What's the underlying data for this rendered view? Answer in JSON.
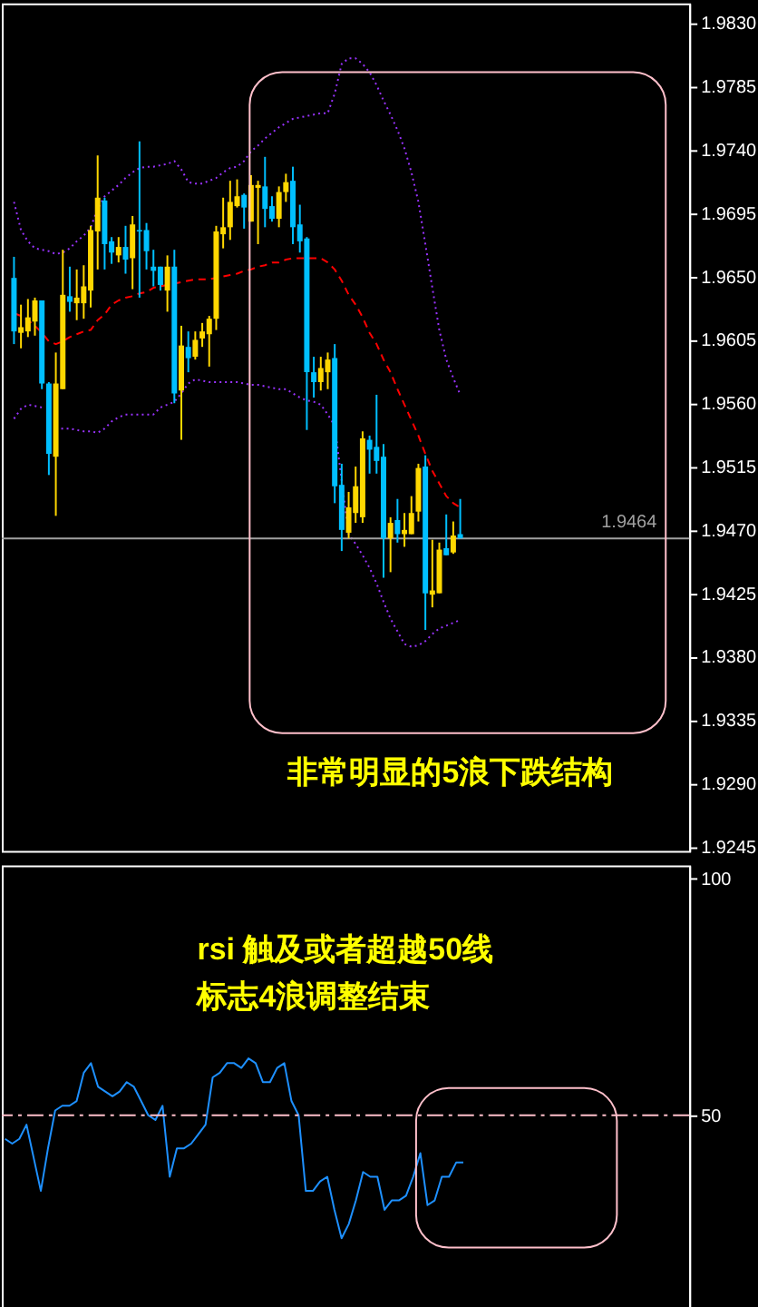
{
  "chart_data": [
    {
      "type": "candlestick",
      "categories": [
        null,
        null,
        null,
        null,
        null,
        null,
        null,
        null,
        null,
        null,
        null,
        null,
        null,
        null,
        null,
        null,
        null,
        null,
        null,
        null,
        null,
        null,
        null,
        null,
        null,
        null,
        null,
        null,
        null,
        null,
        null,
        null,
        null,
        null,
        null,
        null,
        null,
        null,
        null,
        null,
        null,
        null,
        null,
        null,
        null,
        null,
        null,
        null,
        null,
        null,
        null,
        null,
        null,
        null,
        null,
        null,
        null,
        null,
        null,
        null,
        null,
        null,
        null,
        null,
        null
      ],
      "ohlc": [
        [
          1.9649,
          1.9664,
          1.9602,
          1.9611
        ],
        [
          1.961,
          1.963,
          1.9599,
          1.9614
        ],
        [
          1.9611,
          1.9634,
          1.9607,
          1.9621
        ],
        [
          1.9618,
          1.9635,
          1.9608,
          1.9633
        ],
        [
          1.9633,
          1.9633,
          1.957,
          1.9574
        ],
        [
          1.9574,
          1.9575,
          1.9509,
          1.9524
        ],
        [
          1.9522,
          1.9596,
          1.948,
          1.9574
        ],
        [
          1.957,
          1.9669,
          1.957,
          1.9637
        ],
        [
          1.9636,
          1.9657,
          1.9625,
          1.9632
        ],
        [
          1.9631,
          1.9655,
          1.9619,
          1.9635
        ],
        [
          1.9631,
          1.9658,
          1.962,
          1.9643
        ],
        [
          1.964,
          1.9686,
          1.9628,
          1.9683
        ],
        [
          1.9682,
          1.9736,
          1.9655,
          1.9706
        ],
        [
          1.9704,
          1.9706,
          1.9655,
          1.9673
        ],
        [
          1.9675,
          1.9678,
          1.9659,
          1.9667
        ],
        [
          1.9665,
          1.9678,
          1.966,
          1.9671
        ],
        [
          1.9671,
          1.9686,
          1.9652,
          1.9662
        ],
        [
          1.9663,
          1.9693,
          1.9641,
          1.9687
        ],
        [
          1.9683,
          1.9746,
          1.9635,
          1.9682
        ],
        [
          1.9683,
          1.9688,
          1.9655,
          1.9668
        ],
        [
          1.9657,
          1.9669,
          1.9643,
          1.9654
        ],
        [
          1.9657,
          1.9657,
          1.964,
          1.9644
        ],
        [
          1.964,
          1.9665,
          1.9625,
          1.9657
        ],
        [
          1.9657,
          1.9669,
          1.956,
          1.9567
        ],
        [
          1.9569,
          1.9615,
          1.9534,
          1.9601
        ],
        [
          1.96,
          1.9611,
          1.9582,
          1.9592
        ],
        [
          1.9593,
          1.9611,
          1.9591,
          1.9605
        ],
        [
          1.9606,
          1.9617,
          1.96,
          1.9611
        ],
        [
          1.9609,
          1.9622,
          1.9586,
          1.962
        ],
        [
          1.962,
          1.9686,
          1.9612,
          1.9682
        ],
        [
          1.968,
          1.9706,
          1.967,
          1.9685
        ],
        [
          1.9685,
          1.9718,
          1.9676,
          1.9703
        ],
        [
          1.97,
          1.9719,
          1.9699,
          1.9707
        ],
        [
          1.9708,
          1.9709,
          1.9684,
          1.9699
        ],
        [
          1.9689,
          1.9722,
          1.9689,
          1.9715
        ],
        [
          1.9713,
          1.9718,
          1.9673,
          1.9715
        ],
        [
          1.9714,
          1.9735,
          1.9685,
          1.9698
        ],
        [
          1.97,
          1.9707,
          1.9689,
          1.9691
        ],
        [
          1.9691,
          1.9714,
          1.9685,
          1.971
        ],
        [
          1.971,
          1.9723,
          1.9703,
          1.9717
        ],
        [
          1.9718,
          1.9728,
          1.9673,
          1.9685
        ],
        [
          1.9687,
          1.9701,
          1.9667,
          1.9675
        ],
        [
          1.9677,
          1.9678,
          1.9541,
          1.9582
        ],
        [
          1.9582,
          1.9593,
          1.9564,
          1.9575
        ],
        [
          1.9575,
          1.9593,
          1.9569,
          1.9585
        ],
        [
          1.9582,
          1.9596,
          1.957,
          1.9591
        ],
        [
          1.9592,
          1.9602,
          1.9489,
          1.9501
        ],
        [
          1.9502,
          1.9517,
          1.9455,
          1.947
        ],
        [
          1.9468,
          1.9497,
          1.9464,
          1.9486
        ],
        [
          1.9482,
          1.9515,
          1.9475,
          1.9501
        ],
        [
          1.9479,
          1.954,
          1.9475,
          1.9535
        ],
        [
          1.9534,
          1.9537,
          1.951,
          1.9527
        ],
        [
          1.9529,
          1.9566,
          1.951,
          1.9519
        ],
        [
          1.9522,
          1.9531,
          1.9436,
          1.9464
        ],
        [
          1.9464,
          1.9479,
          1.944,
          1.9475
        ],
        [
          1.9477,
          1.9492,
          1.9461,
          1.9467
        ],
        [
          1.9467,
          1.9482,
          1.9458,
          1.947
        ],
        [
          1.9467,
          1.9494,
          1.9467,
          1.9482
        ],
        [
          1.9483,
          1.9517,
          1.9476,
          1.9514
        ],
        [
          1.9515,
          1.9523,
          1.9399,
          1.9425
        ],
        [
          1.9424,
          1.9463,
          1.9415,
          1.9427
        ],
        [
          1.9425,
          1.9461,
          1.9425,
          1.9456
        ],
        [
          1.9457,
          1.9481,
          1.9452,
          1.9452
        ],
        [
          1.9454,
          1.9476,
          1.9453,
          1.9466
        ],
        [
          1.9467,
          1.9492,
          1.9464,
          1.9464
        ]
      ],
      "colors": [
        "#00bfff",
        "#ffd700",
        "#ffd700",
        "#ffd700",
        "#00bfff",
        "#00bfff",
        "#ffd700",
        "#ffd700",
        "#00bfff",
        "#ffd700",
        "#ffd700",
        "#ffd700",
        "#ffd700",
        "#00bfff",
        "#00bfff",
        "#ffd700",
        "#00bfff",
        "#ffd700",
        "#00bfff",
        "#00bfff",
        "#00bfff",
        "#00bfff",
        "#ffd700",
        "#00bfff",
        "#ffd700",
        "#00bfff",
        "#ffd700",
        "#ffd700",
        "#ffd700",
        "#ffd700",
        "#ffd700",
        "#ffd700",
        "#ffd700",
        "#00bfff",
        "#ffd700",
        "#ffd700",
        "#00bfff",
        "#00bfff",
        "#ffd700",
        "#ffd700",
        "#00bfff",
        "#00bfff",
        "#00bfff",
        "#00bfff",
        "#ffd700",
        "#ffd700",
        "#00bfff",
        "#00bfff",
        "#ffd700",
        "#ffd700",
        "#ffd700",
        "#00bfff",
        "#00bfff",
        "#00bfff",
        "#ffd700",
        "#00bfff",
        "#ffd700",
        "#ffd700",
        "#ffd700",
        "#00bfff",
        "#ffd700",
        "#ffd700",
        "#00bfff",
        "#ffd700",
        "#00bfff"
      ],
      "series": [
        {
          "type": "line",
          "color": "#9933ff",
          "line_style": "dotted",
          "values": [
            1.9703,
            1.9683,
            1.9675,
            1.967,
            1.9669,
            1.9668,
            1.9666,
            1.9667,
            1.967,
            1.9675,
            1.9679,
            1.9685,
            1.9698,
            1.9707,
            1.9711,
            1.9715,
            1.972,
            1.9724,
            1.9727,
            1.9728,
            1.9728,
            1.9729,
            1.973,
            1.9732,
            1.9726,
            1.9717,
            1.9716,
            1.9716,
            1.9718,
            1.972,
            1.9724,
            1.9727,
            1.9728,
            1.9732,
            1.9739,
            1.9743,
            1.9748,
            1.9752,
            1.9756,
            1.9759,
            1.9762,
            1.9763,
            1.9764,
            1.9765,
            1.9766,
            1.9766,
            1.978,
            1.9801,
            1.9805,
            1.9805,
            1.9801,
            1.9795,
            1.9786,
            1.9775,
            1.9765,
            1.9754,
            1.9741,
            1.9724,
            1.9703,
            1.9673,
            1.9642,
            1.9612,
            1.9591,
            1.9578,
            1.9566
          ]
        },
        {
          "type": "line",
          "color": "#ff0000",
          "line_style": "dashed",
          "values": [
            1.9624,
            1.9622,
            1.9619,
            1.9615,
            1.961,
            1.9604,
            1.9602,
            1.9604,
            1.9607,
            1.9609,
            1.9611,
            1.9612,
            1.9619,
            1.9623,
            1.963,
            1.9633,
            1.9635,
            1.9636,
            1.9638,
            1.9639,
            1.9642,
            1.9643,
            1.9644,
            1.9645,
            1.9646,
            1.9647,
            1.9648,
            1.9648,
            1.9648,
            1.9649,
            1.965,
            1.9651,
            1.9652,
            1.9654,
            1.9655,
            1.9657,
            1.9658,
            1.966,
            1.966,
            1.9662,
            1.9663,
            1.9663,
            1.9663,
            1.9663,
            1.9663,
            1.966,
            1.9655,
            1.9647,
            1.9637,
            1.963,
            1.9621,
            1.961,
            1.9602,
            1.9591,
            1.9582,
            1.957,
            1.9559,
            1.9548,
            1.9537,
            1.9524,
            1.9512,
            1.9503,
            1.9494,
            1.9489,
            1.9486
          ]
        },
        {
          "type": "line",
          "color": "#9933ff",
          "line_style": "dotted",
          "values": [
            1.9549,
            1.9556,
            1.9559,
            1.9558,
            1.9557,
            null,
            1.9542,
            1.9542,
            1.9542,
            1.9541,
            1.954,
            1.954,
            1.9539,
            1.9542,
            1.9547,
            1.955,
            1.9552,
            1.9552,
            1.9552,
            1.9552,
            1.9552,
            1.9557,
            1.9559,
            1.9561,
            1.9567,
            1.9574,
            1.9577,
            1.9576,
            1.9575,
            1.9575,
            1.9575,
            1.9575,
            1.9575,
            1.9574,
            1.9573,
            1.9573,
            1.9572,
            1.9571,
            1.957,
            1.957,
            1.9567,
            1.9564,
            1.9562,
            1.9561,
            1.9559,
            1.9552,
            1.9544,
            1.9505,
            1.9467,
            1.946,
            1.9452,
            1.9443,
            1.9432,
            1.9419,
            1.9407,
            1.9398,
            1.9389,
            1.9387,
            1.9388,
            1.9391,
            1.9396,
            1.94,
            1.9402,
            1.9404,
            1.9406
          ]
        }
      ],
      "ylim": [
        1.9242,
        1.9844
      ],
      "yticks": [
        {
          "value": 1.983,
          "label": "1.9830"
        },
        {
          "value": 1.9785,
          "label": "1.9785"
        },
        {
          "value": 1.974,
          "label": "1.9740"
        },
        {
          "value": 1.9695,
          "label": "1.9695"
        },
        {
          "value": 1.965,
          "label": "1.9650"
        },
        {
          "value": 1.9605,
          "label": "1.9605"
        },
        {
          "value": 1.956,
          "label": "1.9560"
        },
        {
          "value": 1.9515,
          "label": "1.9515"
        },
        {
          "value": 1.947,
          "label": "1.9470"
        },
        {
          "value": 1.9425,
          "label": "1.9425"
        },
        {
          "value": 1.938,
          "label": "1.9380"
        },
        {
          "value": 1.9335,
          "label": "1.9335"
        },
        {
          "value": 1.929,
          "label": "1.9290"
        },
        {
          "value": 1.9245,
          "label": "1.9245"
        }
      ],
      "ref_lines": [
        {
          "axis": "y",
          "value": 1.9464,
          "label": "1.9464",
          "color": "#a0a0a0",
          "line_style": "solid"
        }
      ],
      "annotations": [
        "非常明显的5浪下跌结构"
      ],
      "tick_labels": "y",
      "grid": false
    },
    {
      "type": "line",
      "categories": [
        null,
        null,
        null,
        null,
        null,
        null,
        null,
        null,
        null,
        null,
        null,
        null,
        null,
        null,
        null,
        null,
        null,
        null,
        null,
        null,
        null,
        null,
        null,
        null,
        null,
        null,
        null,
        null,
        null,
        null,
        null,
        null,
        null,
        null,
        null,
        null,
        null,
        null,
        null,
        null,
        null,
        null,
        null,
        null,
        null,
        null,
        null,
        null,
        null,
        null,
        null,
        null,
        null,
        null,
        null,
        null,
        null,
        null,
        null,
        null,
        null,
        null,
        null,
        null,
        null
      ],
      "series": [
        {
          "type": "line",
          "color": "#1e90ff",
          "values": [
            45,
            44,
            45,
            48,
            41,
            34,
            43,
            51,
            52,
            52,
            53,
            59,
            61,
            56,
            55,
            54,
            55,
            57,
            56,
            53,
            50,
            49,
            52,
            37,
            43,
            43,
            44,
            46,
            48,
            58,
            59,
            61,
            61,
            60,
            62,
            61,
            57,
            57,
            60,
            61,
            53,
            50,
            34,
            34,
            36,
            37,
            30,
            24,
            27,
            32,
            38,
            37,
            37,
            30,
            32,
            32,
            33,
            37,
            42,
            31,
            32,
            37,
            37,
            40,
            40
          ]
        }
      ],
      "ylim": [
        7.5,
        102.8
      ],
      "yticks": [
        100,
        50
      ],
      "ref_lines": [
        {
          "axis": "y",
          "value": 50,
          "color": "#ffc0cb",
          "line_style": "dashed"
        }
      ],
      "annotations": [
        "rsi 触及或者超越50线",
        "标志4浪调整结束"
      ],
      "tick_labels": "y",
      "grid": false
    }
  ]
}
